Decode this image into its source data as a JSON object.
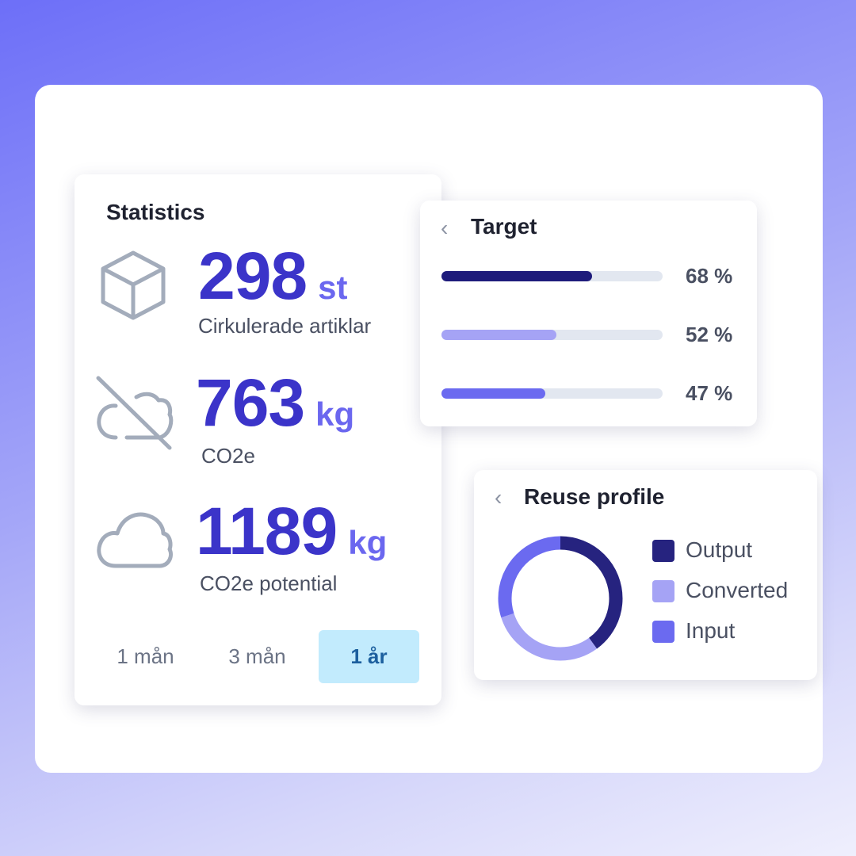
{
  "statistics": {
    "title": "Statistics",
    "items": [
      {
        "value": "298",
        "unit": "st",
        "label": "Cirkulerade artiklar"
      },
      {
        "value": "763",
        "unit": "kg",
        "label": "CO2e"
      },
      {
        "value": "1189",
        "unit": "kg",
        "label": "CO2e potential"
      }
    ],
    "tabs": [
      "1 mån",
      "3 mån",
      "1 år"
    ],
    "active_tab": 2
  },
  "target": {
    "title": "Target",
    "values": [
      68,
      52,
      47
    ],
    "value_labels": [
      "68 %",
      "52 %",
      "47 %"
    ],
    "colors": [
      "#1e1b7b",
      "#a5a3f5",
      "#6b6af0"
    ],
    "xlim": [
      0,
      100
    ]
  },
  "reuse_profile": {
    "title": "Reuse profile",
    "series": [
      {
        "name": "Output",
        "color": "#26237f",
        "value": 40
      },
      {
        "name": "Converted",
        "color": "#a5a3f5",
        "value": 30
      },
      {
        "name": "Input",
        "color": "#6b6af0",
        "value": 30
      }
    ]
  }
}
